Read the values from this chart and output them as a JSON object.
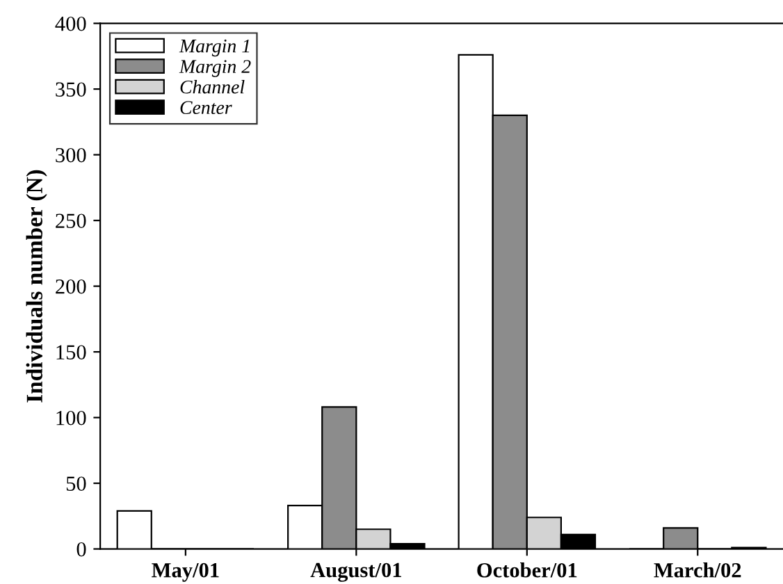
{
  "chart_data": {
    "type": "bar",
    "ylabel": "Individuals number (N)",
    "categories": [
      "May/01",
      "August/01",
      "October/01",
      "March/02"
    ],
    "series": [
      {
        "name": "Margin 1",
        "color": "#ffffff",
        "values": [
          29,
          33,
          376,
          0
        ]
      },
      {
        "name": "Margin 2",
        "color": "#8c8c8c",
        "values": [
          0,
          108,
          330,
          16
        ]
      },
      {
        "name": "Channel",
        "color": "#d3d3d3",
        "values": [
          0,
          15,
          24,
          0
        ]
      },
      {
        "name": "Center",
        "color": "#000000",
        "values": [
          0,
          4,
          11,
          1
        ]
      }
    ],
    "ylim": [
      0,
      400
    ],
    "yticks": [
      0,
      50,
      100,
      150,
      200,
      250,
      300,
      350,
      400
    ],
    "grid": false,
    "legend": "top left"
  }
}
